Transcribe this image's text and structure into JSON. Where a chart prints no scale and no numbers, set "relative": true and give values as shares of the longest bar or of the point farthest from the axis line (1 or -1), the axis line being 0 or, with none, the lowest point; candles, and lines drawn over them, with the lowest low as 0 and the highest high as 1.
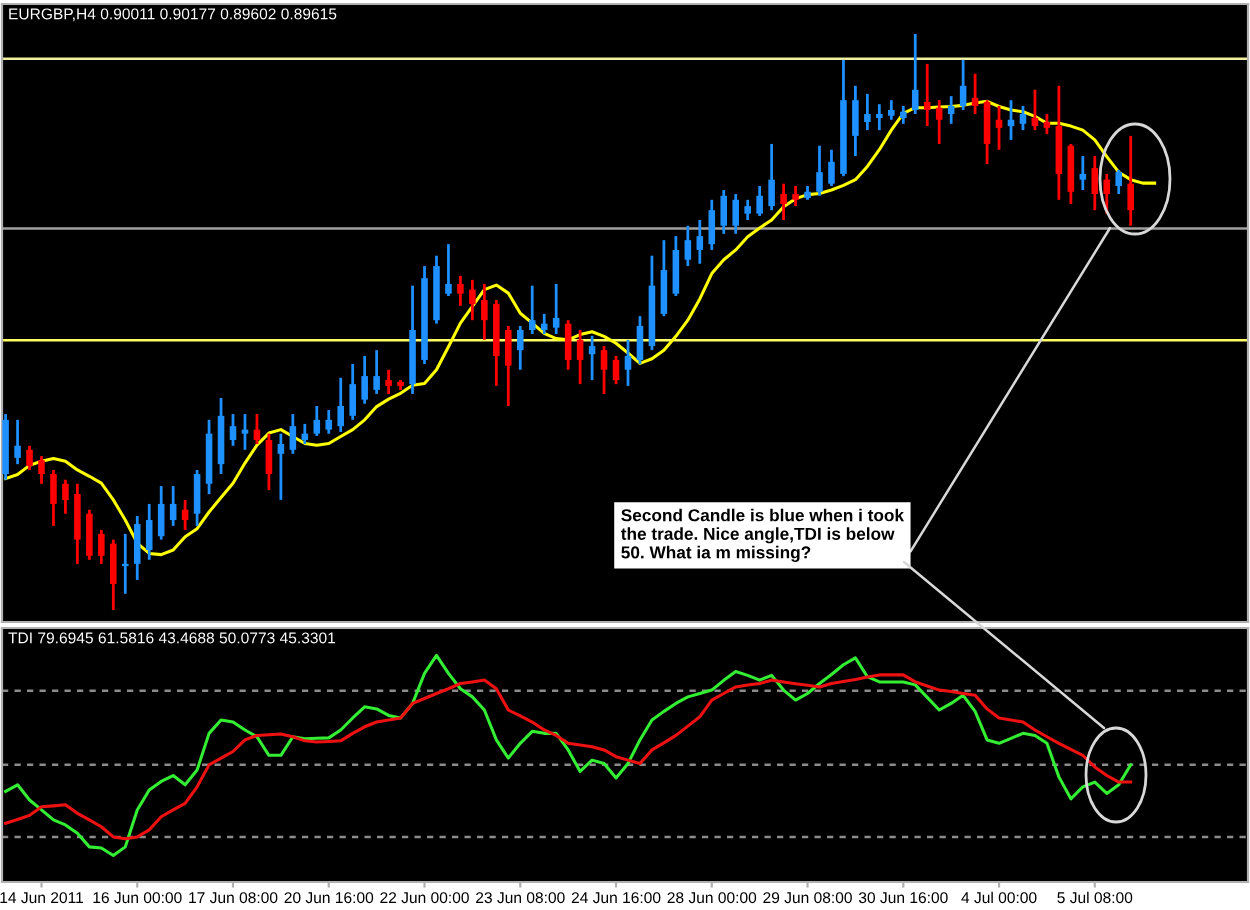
{
  "chart_data": [
    {
      "type": "candlestick",
      "title": "EURGBP,H4 0.90011 0.90177 0.89602 0.89615",
      "relative": true,
      "categories": [
        null,
        null,
        null,
        null,
        null,
        null,
        null,
        null,
        null,
        null,
        null,
        null,
        null,
        null,
        null,
        null,
        null,
        null,
        null,
        null,
        null,
        null,
        null,
        null,
        null,
        null,
        null,
        null,
        null,
        null,
        null,
        null,
        null,
        null,
        null,
        null,
        null,
        null,
        null,
        null,
        null,
        null,
        null,
        null,
        null,
        null,
        null,
        null,
        null,
        null,
        null,
        null,
        null,
        null,
        null,
        null,
        null,
        null,
        null,
        null,
        null,
        null,
        null,
        null,
        null,
        null,
        null,
        null,
        null,
        null,
        null,
        null,
        null,
        null,
        null,
        null,
        null,
        null,
        null,
        null,
        null,
        null,
        null,
        null,
        null,
        null,
        null,
        null,
        null,
        null,
        null,
        null,
        null,
        null,
        null,
        null,
        null,
        null,
        null,
        null,
        null,
        null,
        null,
        null
      ],
      "ohlc": [
        [
          0.236,
          0.34,
          0.226,
          0.33
        ],
        [
          0.264,
          0.33,
          0.253,
          0.285
        ],
        [
          0.278,
          0.285,
          0.243,
          0.25
        ],
        [
          0.26,
          0.267,
          0.219,
          0.236
        ],
        [
          0.236,
          0.243,
          0.146,
          0.184
        ],
        [
          0.219,
          0.226,
          0.167,
          0.191
        ],
        [
          0.201,
          0.219,
          0.08,
          0.122
        ],
        [
          0.167,
          0.174,
          0.087,
          0.094
        ],
        [
          0.132,
          0.139,
          0.08,
          0.094
        ],
        [
          0.115,
          0.122,
          0,
          0.045
        ],
        [
          0.076,
          0.132,
          0.028,
          0.08
        ],
        [
          0.08,
          0.163,
          0.052,
          0.149
        ],
        [
          0.104,
          0.184,
          0.087,
          0.156
        ],
        [
          0.128,
          0.215,
          0.122,
          0.184
        ],
        [
          0.156,
          0.215,
          0.146,
          0.184
        ],
        [
          0.174,
          0.191,
          0.139,
          0.156
        ],
        [
          0.167,
          0.243,
          0.146,
          0.236
        ],
        [
          0.219,
          0.33,
          0.201,
          0.306
        ],
        [
          0.253,
          0.368,
          0.236,
          0.337
        ],
        [
          0.295,
          0.34,
          0.285,
          0.319
        ],
        [
          0.306,
          0.34,
          0.278,
          0.313
        ],
        [
          0.313,
          0.34,
          0.288,
          0.295
        ],
        [
          0.295,
          0.306,
          0.208,
          0.236
        ],
        [
          0.271,
          0.306,
          0.191,
          0.288
        ],
        [
          0.278,
          0.34,
          0.271,
          0.319
        ],
        [
          0.295,
          0.323,
          0.288,
          0.306
        ],
        [
          0.306,
          0.354,
          0.302,
          0.33
        ],
        [
          0.313,
          0.347,
          0.306,
          0.33
        ],
        [
          0.319,
          0.403,
          0.309,
          0.354
        ],
        [
          0.337,
          0.427,
          0.33,
          0.392
        ],
        [
          0.365,
          0.441,
          0.358,
          0.406
        ],
        [
          0.382,
          0.451,
          0.375,
          0.406
        ],
        [
          0.399,
          0.417,
          0.375,
          0.389
        ],
        [
          0.396,
          0.399,
          0.382,
          0.389
        ],
        [
          0.392,
          0.563,
          0.375,
          0.486
        ],
        [
          0.434,
          0.597,
          0.427,
          0.576
        ],
        [
          0.503,
          0.615,
          0.497,
          0.597
        ],
        [
          0.549,
          0.635,
          0.545,
          0.566
        ],
        [
          0.566,
          0.58,
          0.528,
          0.549
        ],
        [
          0.556,
          0.573,
          0.503,
          0.531
        ],
        [
          0.538,
          0.566,
          0.469,
          0.503
        ],
        [
          0.531,
          0.538,
          0.389,
          0.441
        ],
        [
          0.486,
          0.493,
          0.354,
          0.424
        ],
        [
          0.451,
          0.493,
          0.417,
          0.486
        ],
        [
          0.486,
          0.563,
          0.479,
          0.503
        ],
        [
          0.486,
          0.514,
          0.479,
          0.497
        ],
        [
          0.49,
          0.566,
          0.479,
          0.507
        ],
        [
          0.497,
          0.503,
          0.417,
          0.434
        ],
        [
          0.469,
          0.486,
          0.392,
          0.434
        ],
        [
          0.444,
          0.476,
          0.399,
          0.458
        ],
        [
          0.451,
          0.458,
          0.375,
          0.417
        ],
        [
          0.434,
          0.441,
          0.392,
          0.399
        ],
        [
          0.417,
          0.469,
          0.389,
          0.441
        ],
        [
          0.434,
          0.51,
          0.427,
          0.493
        ],
        [
          0.458,
          0.615,
          0.451,
          0.563
        ],
        [
          0.514,
          0.642,
          0.51,
          0.59
        ],
        [
          0.549,
          0.649,
          0.545,
          0.625
        ],
        [
          0.608,
          0.667,
          0.597,
          0.642
        ],
        [
          0.625,
          0.677,
          0.601,
          0.649
        ],
        [
          0.635,
          0.712,
          0.625,
          0.694
        ],
        [
          0.667,
          0.729,
          0.653,
          0.719
        ],
        [
          0.667,
          0.722,
          0.653,
          0.712
        ],
        [
          0.688,
          0.712,
          0.677,
          0.701
        ],
        [
          0.688,
          0.736,
          0.684,
          0.719
        ],
        [
          0.701,
          0.809,
          0.694,
          0.747
        ],
        [
          0.722,
          0.74,
          0.677,
          0.705
        ],
        [
          0.722,
          0.736,
          0.701,
          0.712
        ],
        [
          0.715,
          0.736,
          0.712,
          0.726
        ],
        [
          0.726,
          0.806,
          0.719,
          0.76
        ],
        [
          0.74,
          0.799,
          0.736,
          0.778
        ],
        [
          0.757,
          0.955,
          0.753,
          0.885
        ],
        [
          0.823,
          0.91,
          0.788,
          0.885
        ],
        [
          0.847,
          0.896,
          0.833,
          0.861
        ],
        [
          0.854,
          0.878,
          0.833,
          0.861
        ],
        [
          0.858,
          0.885,
          0.851,
          0.868
        ],
        [
          0.854,
          0.875,
          0.844,
          0.865
        ],
        [
          0.868,
          1,
          0.861,
          0.903
        ],
        [
          0.882,
          0.948,
          0.84,
          0.868
        ],
        [
          0.872,
          0.885,
          0.809,
          0.851
        ],
        [
          0.861,
          0.892,
          0.844,
          0.875
        ],
        [
          0.875,
          0.955,
          0.868,
          0.91
        ],
        [
          0.889,
          0.931,
          0.861,
          0.875
        ],
        [
          0.882,
          0.885,
          0.774,
          0.809
        ],
        [
          0.851,
          0.875,
          0.799,
          0.837
        ],
        [
          0.84,
          0.885,
          0.816,
          0.851
        ],
        [
          0.844,
          0.875,
          0.833,
          0.861
        ],
        [
          0.854,
          0.903,
          0.833,
          0.84
        ],
        [
          0.847,
          0.861,
          0.826,
          0.837
        ],
        [
          0.84,
          0.91,
          0.712,
          0.757
        ],
        [
          0.806,
          0.809,
          0.705,
          0.726
        ],
        [
          0.747,
          0.788,
          0.729,
          0.757
        ],
        [
          0.767,
          0.788,
          0.694,
          0.722
        ],
        [
          0.747,
          0.757,
          0.688,
          0.722
        ],
        [
          0.736,
          0.764,
          0.722,
          0.76
        ],
        [
          0.74,
          0.823,
          0.667,
          0.694
        ],
        null,
        null,
        null,
        null,
        null,
        null,
        null,
        null,
        null
      ],
      "colors": [
        "#1e90ff",
        "#1e90ff",
        "#ff0000",
        "#ff0000",
        "#ff0000",
        "#ff0000",
        "#ff0000",
        "#ff0000",
        "#ff0000",
        "#ff0000",
        "#1e90ff",
        "#1e90ff",
        "#1e90ff",
        "#1e90ff",
        "#1e90ff",
        "#ff0000",
        "#1e90ff",
        "#1e90ff",
        "#1e90ff",
        "#1e90ff",
        "#1e90ff",
        "#ff0000",
        "#ff0000",
        "#1e90ff",
        "#1e90ff",
        "#1e90ff",
        "#1e90ff",
        "#1e90ff",
        "#1e90ff",
        "#1e90ff",
        "#1e90ff",
        "#1e90ff",
        "#ff0000",
        "#ff0000",
        "#1e90ff",
        "#1e90ff",
        "#1e90ff",
        "#1e90ff",
        "#ff0000",
        "#ff0000",
        "#ff0000",
        "#ff0000",
        "#ff0000",
        "#1e90ff",
        "#1e90ff",
        "#1e90ff",
        "#1e90ff",
        "#ff0000",
        "#ff0000",
        "#1e90ff",
        "#ff0000",
        "#ff0000",
        "#1e90ff",
        "#1e90ff",
        "#1e90ff",
        "#1e90ff",
        "#1e90ff",
        "#1e90ff",
        "#1e90ff",
        "#1e90ff",
        "#1e90ff",
        "#1e90ff",
        "#1e90ff",
        "#1e90ff",
        "#1e90ff",
        "#ff0000",
        "#ff0000",
        "#1e90ff",
        "#1e90ff",
        "#1e90ff",
        "#1e90ff",
        "#1e90ff",
        "#1e90ff",
        "#1e90ff",
        "#1e90ff",
        "#1e90ff",
        "#1e90ff",
        "#ff0000",
        "#ff0000",
        "#1e90ff",
        "#1e90ff",
        "#ff0000",
        "#ff0000",
        "#ff0000",
        "#1e90ff",
        "#1e90ff",
        "#ff0000",
        "#ff0000",
        "#ff0000",
        "#ff0000",
        "#1e90ff",
        "#ff0000",
        "#ff0000",
        "#1e90ff",
        "#ff0000",
        null,
        null,
        null,
        null,
        null,
        null,
        null,
        null,
        null
      ],
      "series": [
        {
          "type": "line",
          "color": "#ffff00",
          "values": [
            0.228,
            0.235,
            0.251,
            0.258,
            0.263,
            0.258,
            0.243,
            0.232,
            0.22,
            0.191,
            0.156,
            0.116,
            0.098,
            0.096,
            0.104,
            0.127,
            0.141,
            0.17,
            0.195,
            0.22,
            0.255,
            0.286,
            0.307,
            0.313,
            0.301,
            0.289,
            0.286,
            0.289,
            0.301,
            0.313,
            0.33,
            0.353,
            0.366,
            0.376,
            0.39,
            0.393,
            0.417,
            0.457,
            0.498,
            0.527,
            0.556,
            0.564,
            0.55,
            0.515,
            0.498,
            0.48,
            0.471,
            0.469,
            0.478,
            0.483,
            0.475,
            0.463,
            0.446,
            0.428,
            0.436,
            0.451,
            0.475,
            0.503,
            0.54,
            0.584,
            0.608,
            0.625,
            0.648,
            0.663,
            0.677,
            0.7,
            0.714,
            0.721,
            0.723,
            0.729,
            0.737,
            0.747,
            0.77,
            0.799,
            0.833,
            0.862,
            0.872,
            0.872,
            0.873,
            0.874,
            0.876,
            0.88,
            0.883,
            0.874,
            0.868,
            0.865,
            0.857,
            0.845,
            0.845,
            0.84,
            0.833,
            0.816,
            0.787,
            0.76,
            0.747,
            0.741,
            0.741,
            null,
            null,
            null,
            null,
            null,
            null,
            null
          ]
        }
      ],
      "tick_labels": false,
      "ref_lines": [
        {
          "axis": "y",
          "value": 0.957,
          "color": "#f0f0a0"
        },
        {
          "axis": "y",
          "value": 0.662,
          "color": "#a0a0a0"
        },
        {
          "axis": "y",
          "value": 0.468,
          "color": "#ffff66"
        }
      ],
      "annotations": [
        "Second Candle is blue when i took\nthe trade. Nice angle,TDI is below\n50. What ia m missing?"
      ]
    },
    {
      "type": "line",
      "title": "TDI 79.6945 61.5816 43.4688 50.0773 45.3301",
      "relative": true,
      "categories": [
        null,
        null,
        null,
        "14 Jun 2011",
        null,
        null,
        null,
        null,
        null,
        null,
        null,
        "16 Jun 00:00",
        null,
        null,
        null,
        null,
        null,
        null,
        null,
        "17 Jun 08:00",
        null,
        null,
        null,
        null,
        null,
        null,
        null,
        "20 Jun 16:00",
        null,
        null,
        null,
        null,
        null,
        null,
        null,
        "22 Jun 00:00",
        null,
        null,
        null,
        null,
        null,
        null,
        null,
        "23 Jun 08:00",
        null,
        null,
        null,
        null,
        null,
        null,
        null,
        "24 Jun 16:00",
        null,
        null,
        null,
        null,
        null,
        null,
        null,
        "28 Jun 00:00",
        null,
        null,
        null,
        null,
        null,
        null,
        null,
        "29 Jun 08:00",
        null,
        null,
        null,
        null,
        null,
        null,
        null,
        "30 Jun 16:00",
        null,
        null,
        null,
        null,
        null,
        null,
        null,
        "4 Jul 00:00",
        null,
        null,
        null,
        null,
        null,
        null,
        null,
        "5 Jul 08:00",
        null,
        null,
        null,
        null,
        null,
        null,
        null,
        null,
        null,
        null,
        null,
        null
      ],
      "series": [
        {
          "color": "#33ee33",
          "values": [
            0.4,
            0.429,
            0.362,
            0.318,
            0.274,
            0.252,
            0.215,
            0.155,
            0.15,
            0.117,
            0.155,
            0.318,
            0.406,
            0.444,
            0.47,
            0.429,
            0.494,
            0.656,
            0.715,
            0.706,
            0.671,
            0.641,
            0.559,
            0.559,
            0.641,
            0.632,
            0.634,
            0.636,
            0.671,
            0.724,
            0.773,
            0.764,
            0.735,
            0.724,
            0.788,
            0.921,
            1,
            0.921,
            0.853,
            0.817,
            0.759,
            0.627,
            0.547,
            0.612,
            0.665,
            0.656,
            0.656,
            0.583,
            0.488,
            0.538,
            0.523,
            0.459,
            0.523,
            0.627,
            0.715,
            0.753,
            0.788,
            0.817,
            0.832,
            0.847,
            0.89,
            0.929,
            0.912,
            0.891,
            0.912,
            0.847,
            0.803,
            0.832,
            0.876,
            0.916,
            0.959,
            0.989,
            0.906,
            0.883,
            0.883,
            0.883,
            0.87,
            0.815,
            0.759,
            0.788,
            0.824,
            0.753,
            0.627,
            0.612,
            0.634,
            0.656,
            0.647,
            0.612,
            0.464,
            0.367,
            0.42,
            0.441,
            0.391,
            0.429,
            0.517,
            null,
            null,
            null,
            null,
            null,
            null,
            null,
            null,
            null
          ]
        },
        {
          "color": "#ee1111",
          "values": [
            0.259,
            0.276,
            0.294,
            0.332,
            0.336,
            0.341,
            0.303,
            0.274,
            0.244,
            0.199,
            0.191,
            0.199,
            0.23,
            0.288,
            0.318,
            0.347,
            0.42,
            0.517,
            0.547,
            0.576,
            0.627,
            0.647,
            0.65,
            0.653,
            0.641,
            0.623,
            0.618,
            0.62,
            0.623,
            0.656,
            0.685,
            0.706,
            0.715,
            0.724,
            0.788,
            0.81,
            0.832,
            0.853,
            0.876,
            0.883,
            0.891,
            0.853,
            0.759,
            0.733,
            0.706,
            0.671,
            0.647,
            0.612,
            0.605,
            0.597,
            0.583,
            0.553,
            0.538,
            0.523,
            0.583,
            0.614,
            0.647,
            0.688,
            0.729,
            0.803,
            0.832,
            0.861,
            0.869,
            0.876,
            0.891,
            0.883,
            0.875,
            0.868,
            0.861,
            0.876,
            0.885,
            0.894,
            0.905,
            0.914,
            0.914,
            0.914,
            0.883,
            0.865,
            0.847,
            0.841,
            0.832,
            0.824,
            0.764,
            0.724,
            0.715,
            0.706,
            0.671,
            0.641,
            0.612,
            0.585,
            0.559,
            0.508,
            0.47,
            0.441,
            0.441,
            null,
            null,
            null,
            null,
            null,
            null,
            null,
            null,
            null
          ]
        }
      ],
      "tick_labels": "x",
      "ref_lines": [
        {
          "axis": "y",
          "value": 0.844,
          "color": "#8c8c8c",
          "line_style": "dashed"
        },
        {
          "axis": "y",
          "value": 0.517,
          "color": "#8c8c8c",
          "line_style": "dashed"
        },
        {
          "axis": "y",
          "value": 0.199,
          "color": "#8c8c8c",
          "line_style": "dashed"
        }
      ]
    }
  ]
}
